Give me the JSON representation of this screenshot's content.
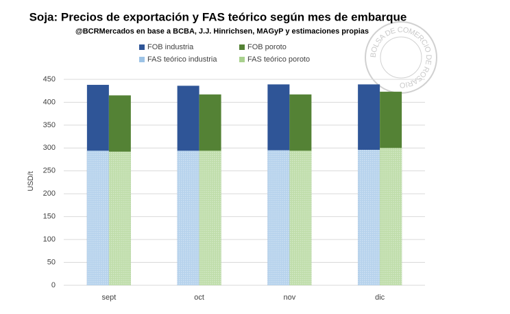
{
  "chart_data": {
    "type": "bar",
    "title": "Soja: Precios de exportación y FAS teórico según mes de embarque",
    "subtitle": "@BCRMercados  en base a BCBA, J.J. Hinrichsen, MAGyP y estimaciones propias",
    "watermark": "BOLSA DE COMERCIO DE ROSARIO",
    "ylabel": "USD/t",
    "categories": [
      "sept",
      "oct",
      "nov",
      "dic"
    ],
    "series": [
      {
        "name": "FOB industria",
        "color": "#2f5597",
        "values": [
          438,
          436,
          439,
          439
        ]
      },
      {
        "name": "FOB poroto",
        "color": "#548235",
        "values": [
          415,
          417,
          417,
          423
        ]
      },
      {
        "name": "FAS teórico industria",
        "color": "#9dc3e6",
        "values": [
          294,
          294,
          295,
          296
        ]
      },
      {
        "name": "FAS teórico poroto",
        "color": "#a9d18e",
        "values": [
          292,
          294,
          294,
          300
        ]
      }
    ],
    "ylim": [
      0,
      450
    ],
    "yticks": [
      0,
      50,
      100,
      150,
      200,
      250,
      300,
      350,
      400,
      450
    ],
    "grid": true
  }
}
